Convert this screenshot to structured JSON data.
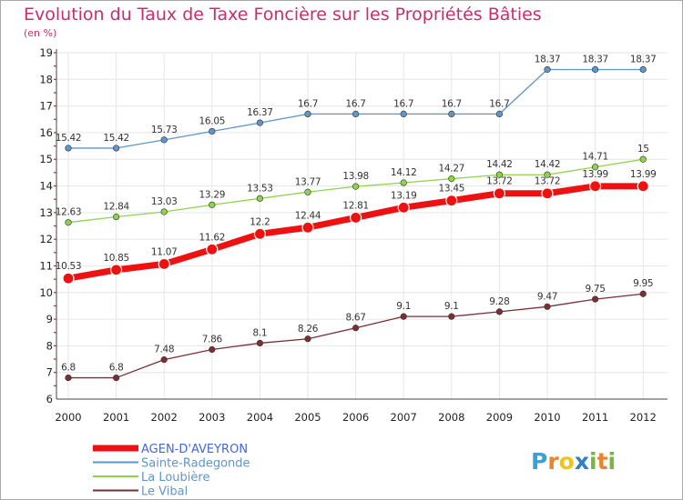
{
  "chart_data": {
    "type": "line",
    "title": "Evolution du Taux de Taxe Foncière sur les Propriétés Bâties",
    "subtitle": "(en %)",
    "xlabel": "",
    "ylabel": "",
    "ylim": [
      6,
      19
    ],
    "yticks": [
      "6",
      "7",
      "8",
      "9",
      "10",
      "11",
      "12",
      "13",
      "14",
      "15",
      "16",
      "17",
      "18",
      "19"
    ],
    "x": [
      "2000",
      "2001",
      "2002",
      "2003",
      "2004",
      "2005",
      "2006",
      "2007",
      "2008",
      "2009",
      "2010",
      "2011",
      "2012"
    ],
    "series": [
      {
        "name": "Sainte-Radegonde",
        "color": "#5f95c9",
        "values": [
          15.42,
          15.42,
          15.73,
          16.05,
          16.37,
          16.7,
          16.7,
          16.7,
          16.7,
          16.7,
          18.37,
          18.37,
          18.37
        ],
        "labels": [
          "15.42",
          "15.42",
          "15.73",
          "16.05",
          "16.37",
          "16.7",
          "16.7",
          "16.7",
          "16.7",
          "16.7",
          "18.37",
          "18.37",
          "18.37"
        ]
      },
      {
        "name": "La Loubière",
        "color": "#8ed34c",
        "values": [
          12.63,
          12.84,
          13.03,
          13.29,
          13.53,
          13.77,
          13.98,
          14.12,
          14.27,
          14.42,
          14.42,
          14.71,
          15
        ],
        "labels": [
          "12.63",
          "12.84",
          "13.03",
          "13.29",
          "13.53",
          "13.77",
          "13.98",
          "14.12",
          "14.27",
          "14.42",
          "14.42",
          "14.71",
          "15"
        ]
      },
      {
        "name": "AGEN-D'AVEYRON",
        "color": "#ee1111",
        "values": [
          10.53,
          10.85,
          11.07,
          11.62,
          12.2,
          12.44,
          12.81,
          13.19,
          13.45,
          13.72,
          13.72,
          13.99,
          13.99
        ],
        "labels": [
          "10.53",
          "10.85",
          "11.07",
          "11.62",
          "12.2",
          "12.44",
          "12.81",
          "13.19",
          "13.45",
          "13.72",
          "13.72",
          "13.99",
          "13.99"
        ]
      },
      {
        "name": "Le Vibal",
        "color": "#7a2f36",
        "values": [
          6.8,
          6.8,
          7.48,
          7.86,
          8.1,
          8.26,
          8.67,
          9.1,
          9.1,
          9.28,
          9.47,
          9.75,
          9.95
        ],
        "labels": [
          "6.8",
          "6.8",
          "7.48",
          "7.86",
          "8.1",
          "8.26",
          "8.67",
          "9.1",
          "9.1",
          "9.28",
          "9.47",
          "9.75",
          "9.95"
        ]
      }
    ],
    "legend": {
      "placement": "bottom-left",
      "entries": [
        {
          "name": "AGEN-D'AVEYRON",
          "color": "#ee1111",
          "text_color": "#4466dd"
        },
        {
          "name": "Sainte-Radegonde",
          "color": "#5f95c9",
          "text_color": "#5f95c9"
        },
        {
          "name": "La Loubière",
          "color": "#8ed34c",
          "text_color": "#5f95c9"
        },
        {
          "name": "Le Vibal",
          "color": "#7a2f36",
          "text_color": "#5f95c9"
        }
      ]
    },
    "brand": {
      "text": "Proxiti",
      "letters": [
        "P",
        "r",
        "o",
        "x",
        "i",
        "t",
        "i"
      ],
      "colors": [
        "#3aa0d8",
        "#e8862a",
        "#f0c419",
        "#2f7fc1",
        "#74b843",
        "#e8862a",
        "#74b843"
      ]
    }
  }
}
